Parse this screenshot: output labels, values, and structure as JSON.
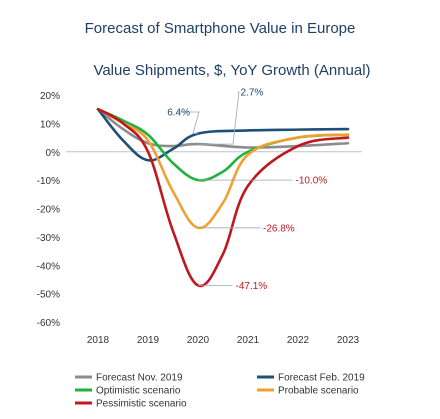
{
  "chart_data": {
    "type": "line",
    "title": "Forecast of Smartphone Value in Europe",
    "subtitle": "Value Shipments, $, YoY Growth (Annual)",
    "xlabel": "",
    "ylabel": "",
    "x": [
      2018,
      2019,
      2020,
      2021,
      2022,
      2023
    ],
    "ylim": [
      -60,
      20
    ],
    "yticks": [
      "20%",
      "10%",
      "0%",
      "-10%",
      "-20%",
      "-30%",
      "-40%",
      "-50%",
      "-60%"
    ],
    "ytick_values": [
      20,
      10,
      0,
      -10,
      -20,
      -30,
      -40,
      -50,
      -60
    ],
    "xticks": [
      "2018",
      "2019",
      "2020",
      "2021",
      "2022",
      "2023"
    ],
    "grid": false,
    "legend_position": "bottom",
    "series": [
      {
        "name": "Forecast Nov. 2019",
        "color": "#8c8c8c",
        "points": [
          [
            2018,
            15
          ],
          [
            2018.5,
            8
          ],
          [
            2019,
            3
          ],
          [
            2019.5,
            2
          ],
          [
            2020,
            2.7
          ],
          [
            2021,
            1.5
          ],
          [
            2022,
            2
          ],
          [
            2023,
            3
          ]
        ]
      },
      {
        "name": "Forecast Feb. 2019",
        "color": "#1f4e79",
        "points": [
          [
            2018,
            15
          ],
          [
            2018.5,
            4
          ],
          [
            2019,
            -3
          ],
          [
            2019.5,
            1
          ],
          [
            2020,
            6.4
          ],
          [
            2021,
            7.5
          ],
          [
            2022,
            7.8
          ],
          [
            2023,
            8
          ]
        ]
      },
      {
        "name": "Optimistic scenario",
        "color": "#1fb33c",
        "points": [
          [
            2018,
            15
          ],
          [
            2018.5,
            11
          ],
          [
            2019,
            6
          ],
          [
            2019.5,
            -4
          ],
          [
            2020,
            -10
          ],
          [
            2020.5,
            -7
          ],
          [
            2021,
            0
          ],
          [
            2022,
            5
          ],
          [
            2023,
            6
          ]
        ]
      },
      {
        "name": "Probable scenario",
        "color": "#f0a030",
        "points": [
          [
            2018,
            15
          ],
          [
            2018.5,
            10
          ],
          [
            2019,
            4
          ],
          [
            2019.5,
            -14
          ],
          [
            2020,
            -26.8
          ],
          [
            2020.5,
            -18
          ],
          [
            2021,
            -1
          ],
          [
            2022,
            5
          ],
          [
            2023,
            6
          ]
        ]
      },
      {
        "name": "Pessimistic scenario",
        "color": "#c0171e",
        "points": [
          [
            2018,
            15
          ],
          [
            2018.5,
            10
          ],
          [
            2019,
            0
          ],
          [
            2019.5,
            -28
          ],
          [
            2020,
            -47.1
          ],
          [
            2020.5,
            -36
          ],
          [
            2021,
            -12
          ],
          [
            2022,
            2
          ],
          [
            2023,
            5
          ]
        ]
      }
    ],
    "annotations": [
      {
        "text": "2.7%",
        "color": "#1f4e79",
        "x": 2020,
        "y": 2.7,
        "label_x": 2020.85,
        "label_y": 21,
        "elbow_x": 2020.7
      },
      {
        "text": "6.4%",
        "color": "#1f4e79",
        "x": 2020,
        "y": 6.4,
        "label_x": 2019.65,
        "label_y": 14,
        "elbow_x": 2019.9
      },
      {
        "text": "-10.0%",
        "color": "#c0171e",
        "x": 2020,
        "y": -10,
        "label_x": 2021.95,
        "label_y": -10,
        "elbow_x": 2021.9
      },
      {
        "text": "-26.8%",
        "color": "#c0171e",
        "x": 2020,
        "y": -26.8,
        "label_x": 2021.3,
        "label_y": -26.8,
        "elbow_x": 2021.25
      },
      {
        "text": "-47.1%",
        "color": "#c0171e",
        "x": 2020,
        "y": -47.1,
        "label_x": 2020.75,
        "label_y": -47.1,
        "elbow_x": 2020.7
      }
    ],
    "axis_line_color": "#b8c4cf"
  }
}
